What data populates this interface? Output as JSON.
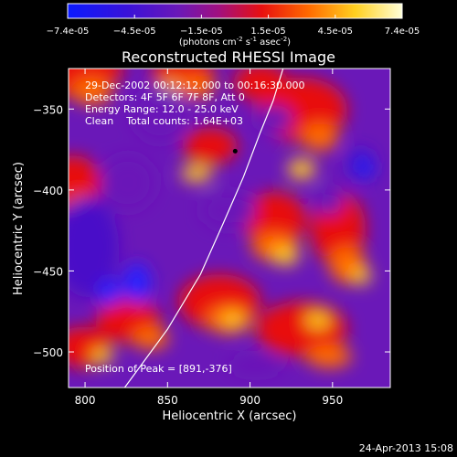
{
  "chart_data": {
    "type": "heatmap",
    "title": "Reconstructed RHESSI Image",
    "xlabel": "Heliocentric X (arcsec)",
    "ylabel": "Heliocentric Y (arcsec)",
    "xlim": [
      790,
      985
    ],
    "ylim": [
      -522,
      -325
    ],
    "x_ticks": [
      800,
      850,
      900,
      950
    ],
    "y_ticks": [
      -350,
      -400,
      -450,
      -500
    ],
    "colorbar": {
      "ticks": [
        "-7.4e-05",
        "-4.5e-05",
        "-1.5e-05",
        "1.5e-05",
        "4.5e-05",
        "7.4e-05"
      ],
      "unit_text": "(photons cm",
      "unit_sup1": "-2",
      "unit_mid": " s",
      "unit_sup2": "-1",
      "unit_mid2": " asec",
      "unit_sup3": "-2",
      "unit_end": ")",
      "range": [
        -7.4e-05,
        7.4e-05
      ]
    },
    "annotations": {
      "time": "29-Dec-2002 00:12:12.000 to 00:16:30.000",
      "detectors": "Detectors: 4F 5F 6F 7F 8F, Att 0",
      "energy": "Energy Range: 12.0 - 25.0 keV",
      "clean": "Clean    Total counts: 1.64E+03",
      "peak": "Position of Peak = [891,-376]"
    },
    "limb": [
      [
        824,
        -522
      ],
      [
        850,
        -486
      ],
      [
        870,
        -452
      ],
      [
        884,
        -420
      ],
      [
        896,
        -392
      ],
      [
        906,
        -365
      ],
      [
        914,
        -345
      ],
      [
        920,
        -325
      ]
    ],
    "peak": [
      891,
      -376
    ],
    "timestamp": "24-Apr-2013 15:08"
  }
}
